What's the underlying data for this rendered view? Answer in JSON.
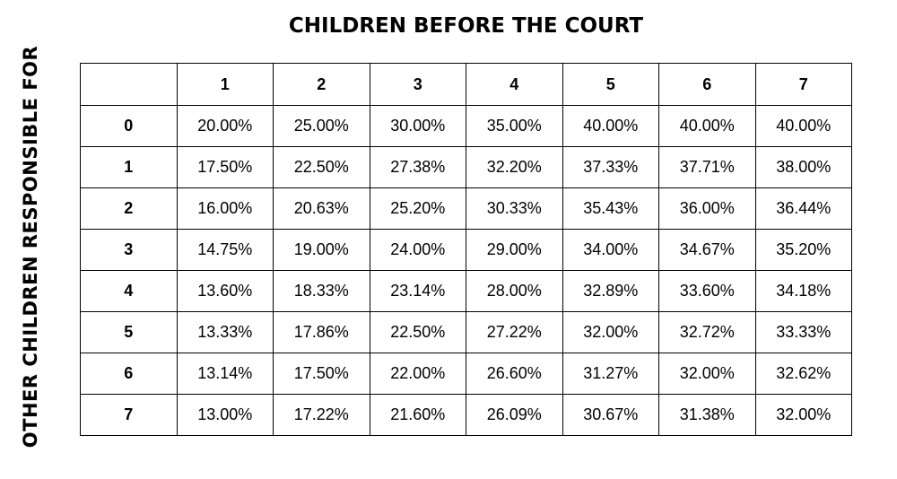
{
  "chart_data": {
    "type": "table",
    "title": "CHILDREN BEFORE THE COURT",
    "row_axis_label": "OTHER CHILDREN RESPONSIBLE FOR",
    "columns": [
      "1",
      "2",
      "3",
      "4",
      "5",
      "6",
      "7"
    ],
    "rows": [
      {
        "label": "0",
        "values": [
          "20.00%",
          "25.00%",
          "30.00%",
          "35.00%",
          "40.00%",
          "40.00%",
          "40.00%"
        ]
      },
      {
        "label": "1",
        "values": [
          "17.50%",
          "22.50%",
          "27.38%",
          "32.20%",
          "37.33%",
          "37.71%",
          "38.00%"
        ]
      },
      {
        "label": "2",
        "values": [
          "16.00%",
          "20.63%",
          "25.20%",
          "30.33%",
          "35.43%",
          "36.00%",
          "36.44%"
        ]
      },
      {
        "label": "3",
        "values": [
          "14.75%",
          "19.00%",
          "24.00%",
          "29.00%",
          "34.00%",
          "34.67%",
          "35.20%"
        ]
      },
      {
        "label": "4",
        "values": [
          "13.60%",
          "18.33%",
          "23.14%",
          "28.00%",
          "32.89%",
          "33.60%",
          "34.18%"
        ]
      },
      {
        "label": "5",
        "values": [
          "13.33%",
          "17.86%",
          "22.50%",
          "27.22%",
          "32.00%",
          "32.72%",
          "33.33%"
        ]
      },
      {
        "label": "6",
        "values": [
          "13.14%",
          "17.50%",
          "22.00%",
          "26.60%",
          "31.27%",
          "32.00%",
          "32.62%"
        ]
      },
      {
        "label": "7",
        "values": [
          "13.00%",
          "17.22%",
          "21.60%",
          "26.09%",
          "30.67%",
          "31.38%",
          "32.00%"
        ]
      }
    ]
  }
}
